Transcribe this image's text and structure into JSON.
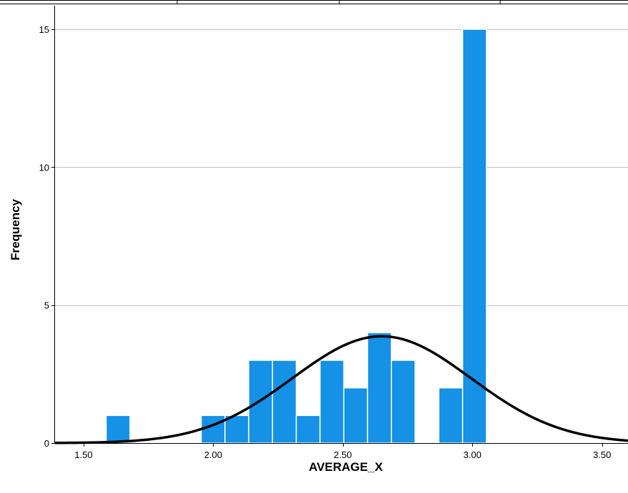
{
  "chart_data": {
    "type": "bar",
    "subtype": "histogram",
    "xlabel": "AVERAGE_X",
    "ylabel": "Frequency",
    "xlim": [
      1.39,
      3.6
    ],
    "ylim": [
      0,
      15
    ],
    "x_ticks": [
      "1.50",
      "2.00",
      "2.50",
      "3.00",
      "3.50"
    ],
    "x_tick_values": [
      1.5,
      2.0,
      2.5,
      3.0,
      3.5
    ],
    "y_ticks": [
      "0",
      "5",
      "10",
      "15"
    ],
    "y_tick_values": [
      0,
      5,
      10,
      15
    ],
    "bin_width": 0.0917,
    "bins": [
      {
        "x0": 1.5873,
        "x1": 1.679,
        "count": 1
      },
      {
        "x0": 1.9538,
        "x1": 2.0455,
        "count": 1
      },
      {
        "x0": 2.0455,
        "x1": 2.1372,
        "count": 1
      },
      {
        "x0": 2.1372,
        "x1": 2.2289,
        "count": 3
      },
      {
        "x0": 2.2289,
        "x1": 2.3205,
        "count": 3
      },
      {
        "x0": 2.3205,
        "x1": 2.4122,
        "count": 1
      },
      {
        "x0": 2.4122,
        "x1": 2.5039,
        "count": 3
      },
      {
        "x0": 2.5039,
        "x1": 2.5955,
        "count": 2
      },
      {
        "x0": 2.5955,
        "x1": 2.6872,
        "count": 4
      },
      {
        "x0": 2.6872,
        "x1": 2.7789,
        "count": 3
      },
      {
        "x0": 2.8705,
        "x1": 2.9622,
        "count": 2
      },
      {
        "x0": 2.9622,
        "x1": 3.0539,
        "count": 15
      }
    ],
    "normal_curve": {
      "mean": 2.65,
      "std_dev": 0.345,
      "peak": 3.87
    },
    "grid": "horizontal",
    "colors": {
      "bar": "#1591e6",
      "bar_edge": "#ffffff",
      "curve": "#000000",
      "grid": "#c0c0c0",
      "axis": "#000000"
    }
  }
}
